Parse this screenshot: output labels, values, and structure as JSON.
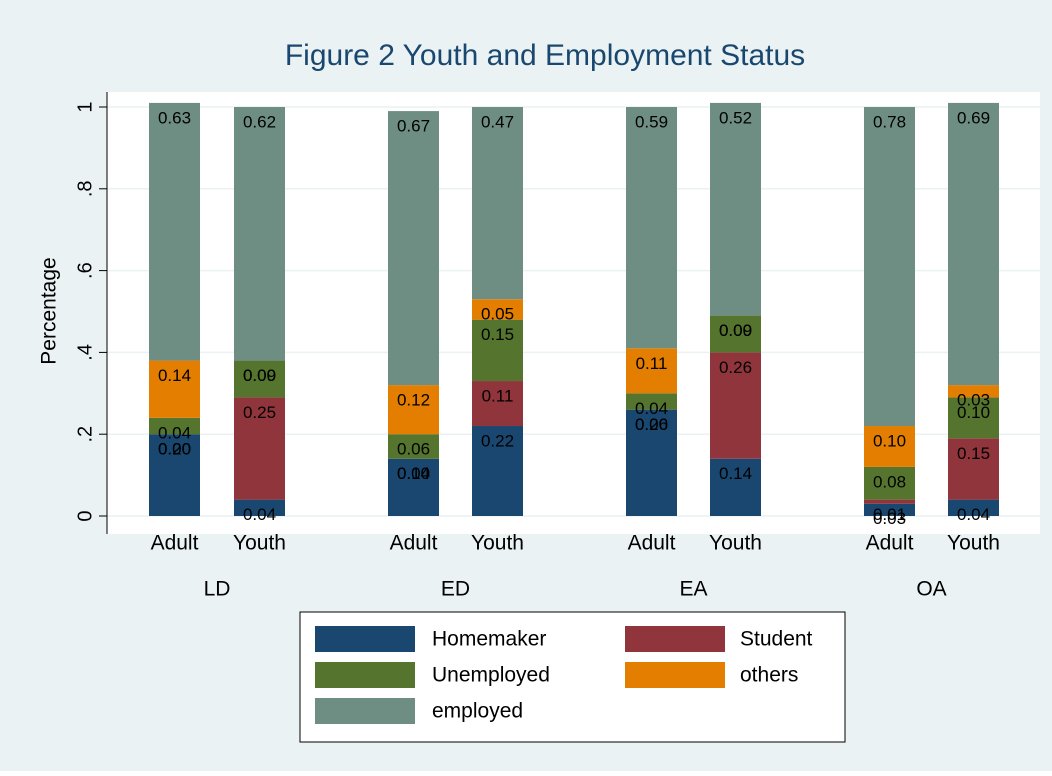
{
  "chart_data": {
    "type": "stacked-bar",
    "title": "Figure 2 Youth and Employment Status",
    "y_label": "Percentage",
    "groups": [
      "LD",
      "ED",
      "EA",
      "OA"
    ],
    "categories": [
      "Adult",
      "Youth",
      "Adult",
      "Youth",
      "Adult",
      "Youth",
      "Adult",
      "Youth"
    ],
    "series": [
      {
        "name": "Homemaker",
        "color": "#1a476f",
        "values": [
          0.2,
          0.04,
          0.14,
          0.22,
          0.26,
          0.14,
          0.03,
          0.04
        ],
        "value_labels": [
          "0.20",
          "0.04",
          "0.14",
          "0.22",
          "0.26",
          "0.14",
          "0.03",
          "0.04"
        ]
      },
      {
        "name": "Student",
        "color": "#90353b",
        "values": [
          0,
          0.25,
          0,
          0.11,
          0,
          0.26,
          0.01,
          0.15
        ],
        "value_labels": [
          "0.00",
          "0.25",
          "0.00",
          "0.11",
          "0.00",
          "0.26",
          "0.01",
          "0.15"
        ]
      },
      {
        "name": "Unemployed",
        "color": "#55752f",
        "values": [
          0.04,
          0.09,
          0.06,
          0.15,
          0.04,
          0.09,
          0.08,
          0.1
        ],
        "value_labels": [
          "0.04",
          "0.09",
          "0.06",
          "0.15",
          "0.04",
          "0.09",
          "0.08",
          "0.10"
        ]
      },
      {
        "name": "others",
        "color": "#e37e00",
        "values": [
          0.14,
          0,
          0.12,
          0.05,
          0.11,
          0,
          0.1,
          0.03
        ],
        "value_labels": [
          "0.14",
          "0.00",
          "0.12",
          "0.05",
          "0.11",
          "0.00",
          "0.10",
          "0.03"
        ]
      },
      {
        "name": "employed",
        "color": "#6e8e84",
        "values": [
          0.63,
          0.62,
          0.67,
          0.47,
          0.59,
          0.52,
          0.78,
          0.69
        ],
        "value_labels": [
          "0.63",
          "0.62",
          "0.67",
          "0.47",
          "0.59",
          "0.52",
          "0.78",
          "0.69"
        ]
      }
    ],
    "ylim": [
      0,
      1
    ],
    "yticks": [
      0,
      {
        "value": 0.2,
        "label": ".2"
      },
      {
        "value": 0.4,
        "label": ".4"
      },
      {
        "value": 0.6,
        "label": ".6"
      },
      {
        "value": 0.8,
        "label": ".8"
      },
      1
    ],
    "grid": true
  }
}
